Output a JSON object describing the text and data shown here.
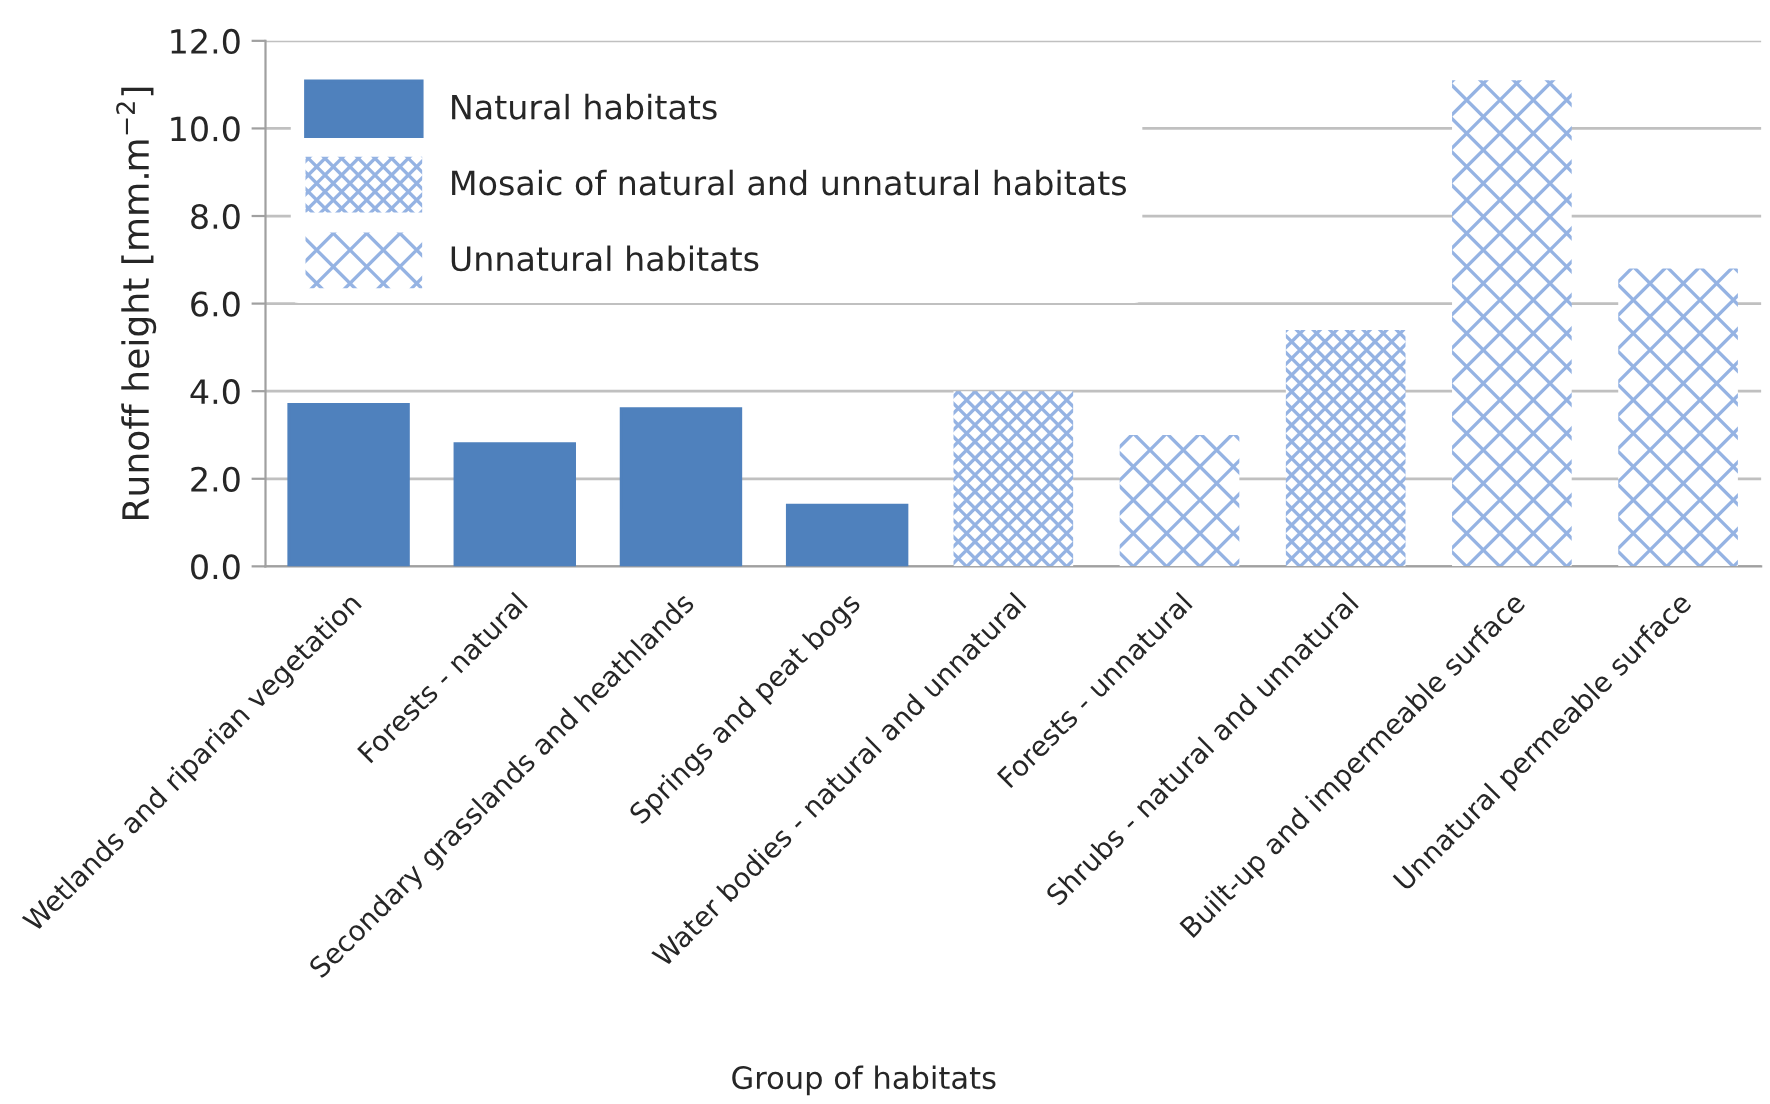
{
  "chart_data": {
    "type": "bar",
    "xlabel": "Group of habitats",
    "ylabel": "Runoff height [mm.m$^{−2}$]",
    "categories": [
      "Wetlands and riparian vegetation",
      "Forests - natural",
      "Secondary grasslands and heathlands",
      "Springs and peat bogs",
      "Water bodies - natural and unnatural",
      "Forests - unnatural",
      "Shrubs - natural and unnatural",
      "Built-up and impermeable surface",
      "Unnatural permeable surface"
    ],
    "series": [
      {
        "name": "Natural habitats",
        "color": "#4f81bd",
        "values": [
          3.7,
          2.8,
          3.6,
          1.4,
          null,
          null,
          null,
          null,
          null
        ]
      },
      {
        "name": "Mosaic of natural and unnatural habitats",
        "color": "#95b3e3",
        "values": [
          null,
          null,
          null,
          null,
          4.0,
          null,
          5.4,
          null,
          null
        ]
      },
      {
        "name": "Unnatural habitats",
        "color": "#95b3e3",
        "values": [
          null,
          null,
          null,
          null,
          null,
          3.0,
          null,
          11.1,
          6.8
        ]
      }
    ],
    "ylim": [
      0,
      12
    ],
    "yticks": [
      {
        "value": 0,
        "label": "0.0"
      },
      {
        "value": 2,
        "label": "2.0"
      },
      {
        "value": 4,
        "label": "4.0"
      },
      {
        "value": 6,
        "label": "6.0"
      },
      {
        "value": 8,
        "label": "8.0"
      },
      {
        "value": 10,
        "label": "10.0"
      },
      {
        "value": 12,
        "label": "12.0"
      }
    ],
    "grid": "y",
    "legend": "top left"
  }
}
